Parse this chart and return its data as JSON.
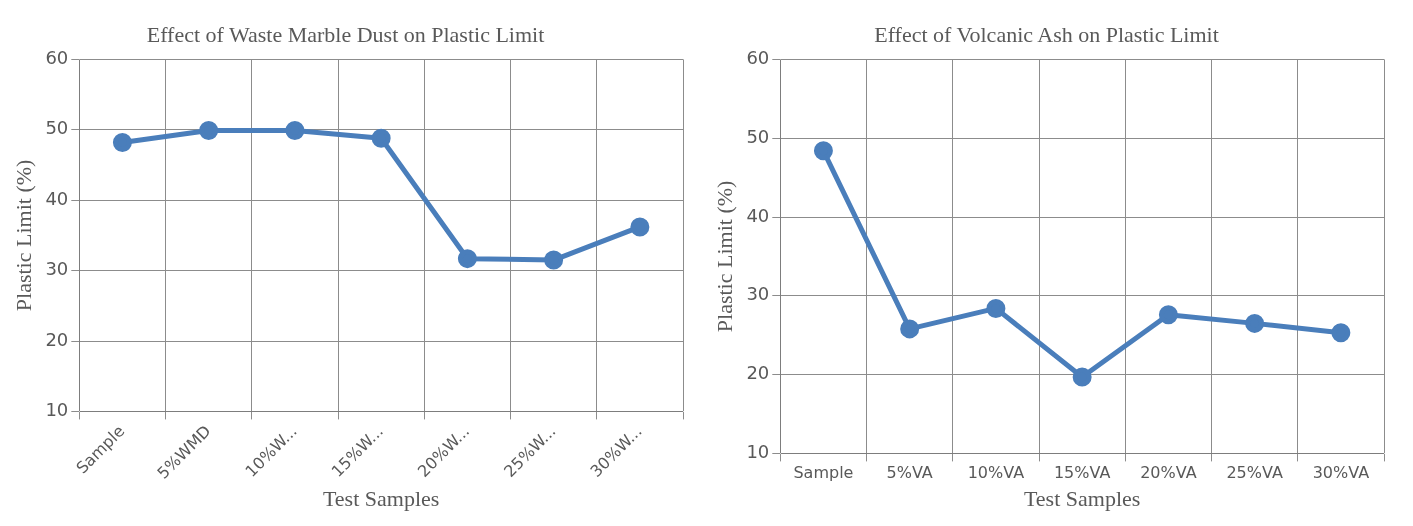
{
  "chart_data": [
    {
      "type": "line",
      "title": "Effect of Waste Marble Dust on Plastic Limit",
      "xlabel": "Test Samples",
      "ylabel": "Plastic Limit (%)",
      "categories": [
        "Sample",
        "5%WMD",
        "10%W...",
        "15%W...",
        "20%W...",
        "25%W...",
        "30%W..."
      ],
      "series": [
        {
          "color": "#4a7ebb",
          "values": [
            48.2,
            49.9,
            49.9,
            48.8,
            31.7,
            31.5,
            36.2
          ]
        }
      ],
      "ylim": [
        10,
        60
      ],
      "yticks": [
        10,
        20,
        30,
        40,
        50,
        60
      ],
      "grid": true,
      "legend": false,
      "marker": "circle",
      "line_style": "solid"
    },
    {
      "type": "line",
      "title": "Effect of Volcanic Ash on Plastic Limit",
      "xlabel": "Test Samples",
      "ylabel": "Plastic Limit (%)",
      "categories": [
        "Sample",
        "5%VA",
        "10%VA",
        "15%VA",
        "20%VA",
        "25%VA",
        "30%VA"
      ],
      "series": [
        {
          "color": "#4a7ebb",
          "values": [
            48.4,
            25.8,
            28.4,
            19.7,
            27.6,
            26.5,
            25.3
          ]
        }
      ],
      "ylim": [
        10,
        60
      ],
      "yticks": [
        10,
        20,
        30,
        40,
        50,
        60
      ],
      "grid": true,
      "legend": false,
      "marker": "circle",
      "line_style": "solid"
    }
  ]
}
